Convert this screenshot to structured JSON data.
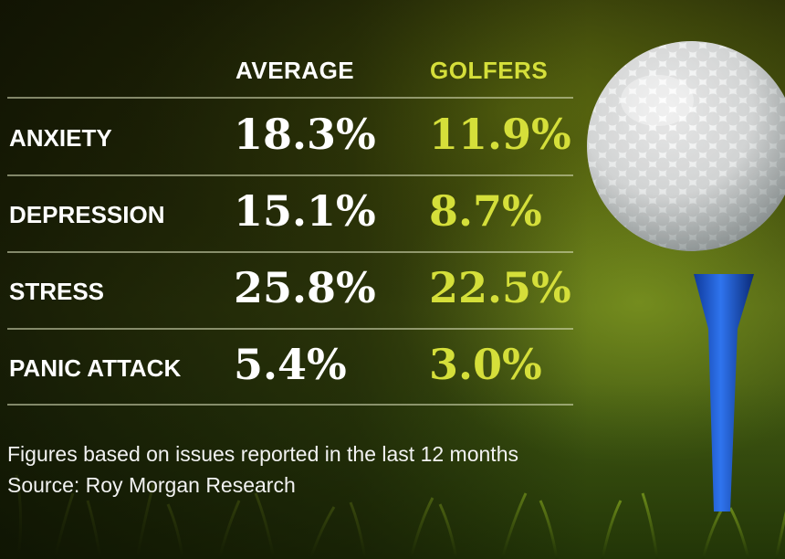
{
  "chart_data": {
    "type": "table",
    "columns": [
      "AVERAGE",
      "GOLFERS"
    ],
    "rows": [
      {
        "label": "ANXIETY",
        "values": [
          "18.3%",
          "11.9%"
        ]
      },
      {
        "label": "DEPRESSION",
        "values": [
          "15.1%",
          "8.7%"
        ]
      },
      {
        "label": "STRESS",
        "values": [
          "25.8%",
          "22.5%"
        ]
      },
      {
        "label": "PANIC ATTACK",
        "values": [
          "5.4%",
          "3.0%"
        ]
      }
    ],
    "footnote": "Figures based on issues reported in the last 12 months",
    "source": "Source: Roy Morgan Research"
  },
  "colors": {
    "average_text": "#ffffff",
    "golfers_text": "#d5df3a",
    "tee": "#1f5fd6"
  },
  "background": {
    "icon": "golf-ball-on-tee-icon"
  }
}
